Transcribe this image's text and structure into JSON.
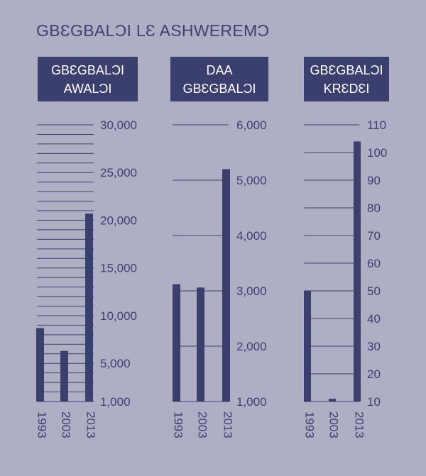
{
  "title": "GBƐGBALƆI LƐ ASHWEREMƆ",
  "colors": {
    "background": "#aeaec5",
    "bar": "#3b3f6e",
    "header_bg": "#3b3f6e",
    "header_text": "#ffffff",
    "text": "#3e4070",
    "grid": "#3e4070"
  },
  "panels": [
    {
      "header_line1": "GBƐGBALƆI",
      "header_line2": "AWALƆI"
    },
    {
      "header_line1": "DAA",
      "header_line2": "GBƐGBALƆI"
    },
    {
      "header_line1": "GBƐGBALƆI",
      "header_line2": "KRƐDƐI"
    }
  ],
  "chart_data": [
    {
      "type": "bar",
      "categories": [
        "1993",
        "2003",
        "2013"
      ],
      "values": [
        8700,
        6300,
        20700
      ],
      "ylim": [
        1000,
        30000
      ],
      "ticks": [
        1000,
        5000,
        10000,
        15000,
        20000,
        25000,
        30000
      ],
      "tick_labels": [
        "1,000",
        "5,000",
        "10,000",
        "15,000",
        "20,000",
        "25,000",
        "30,000"
      ],
      "grid_step": 1000,
      "grid": true
    },
    {
      "type": "bar",
      "categories": [
        "1993",
        "2003",
        "2013"
      ],
      "values": [
        3120,
        3060,
        5200
      ],
      "ylim": [
        1000,
        6000
      ],
      "ticks": [
        1000,
        2000,
        3000,
        4000,
        5000,
        6000
      ],
      "tick_labels": [
        "1,000",
        "2,000",
        "3,000",
        "4,000",
        "5,000",
        "6,000"
      ],
      "grid_step": 1000,
      "grid": true
    },
    {
      "type": "bar",
      "categories": [
        "1993",
        "2003",
        "2013"
      ],
      "values": [
        50,
        11,
        104
      ],
      "ylim": [
        10,
        110
      ],
      "ticks": [
        10,
        20,
        30,
        40,
        50,
        60,
        70,
        80,
        90,
        100,
        110
      ],
      "tick_labels": [
        "10",
        "20",
        "30",
        "40",
        "50",
        "60",
        "70",
        "80",
        "90",
        "100",
        "110"
      ],
      "grid_step": 10,
      "grid": true
    }
  ]
}
